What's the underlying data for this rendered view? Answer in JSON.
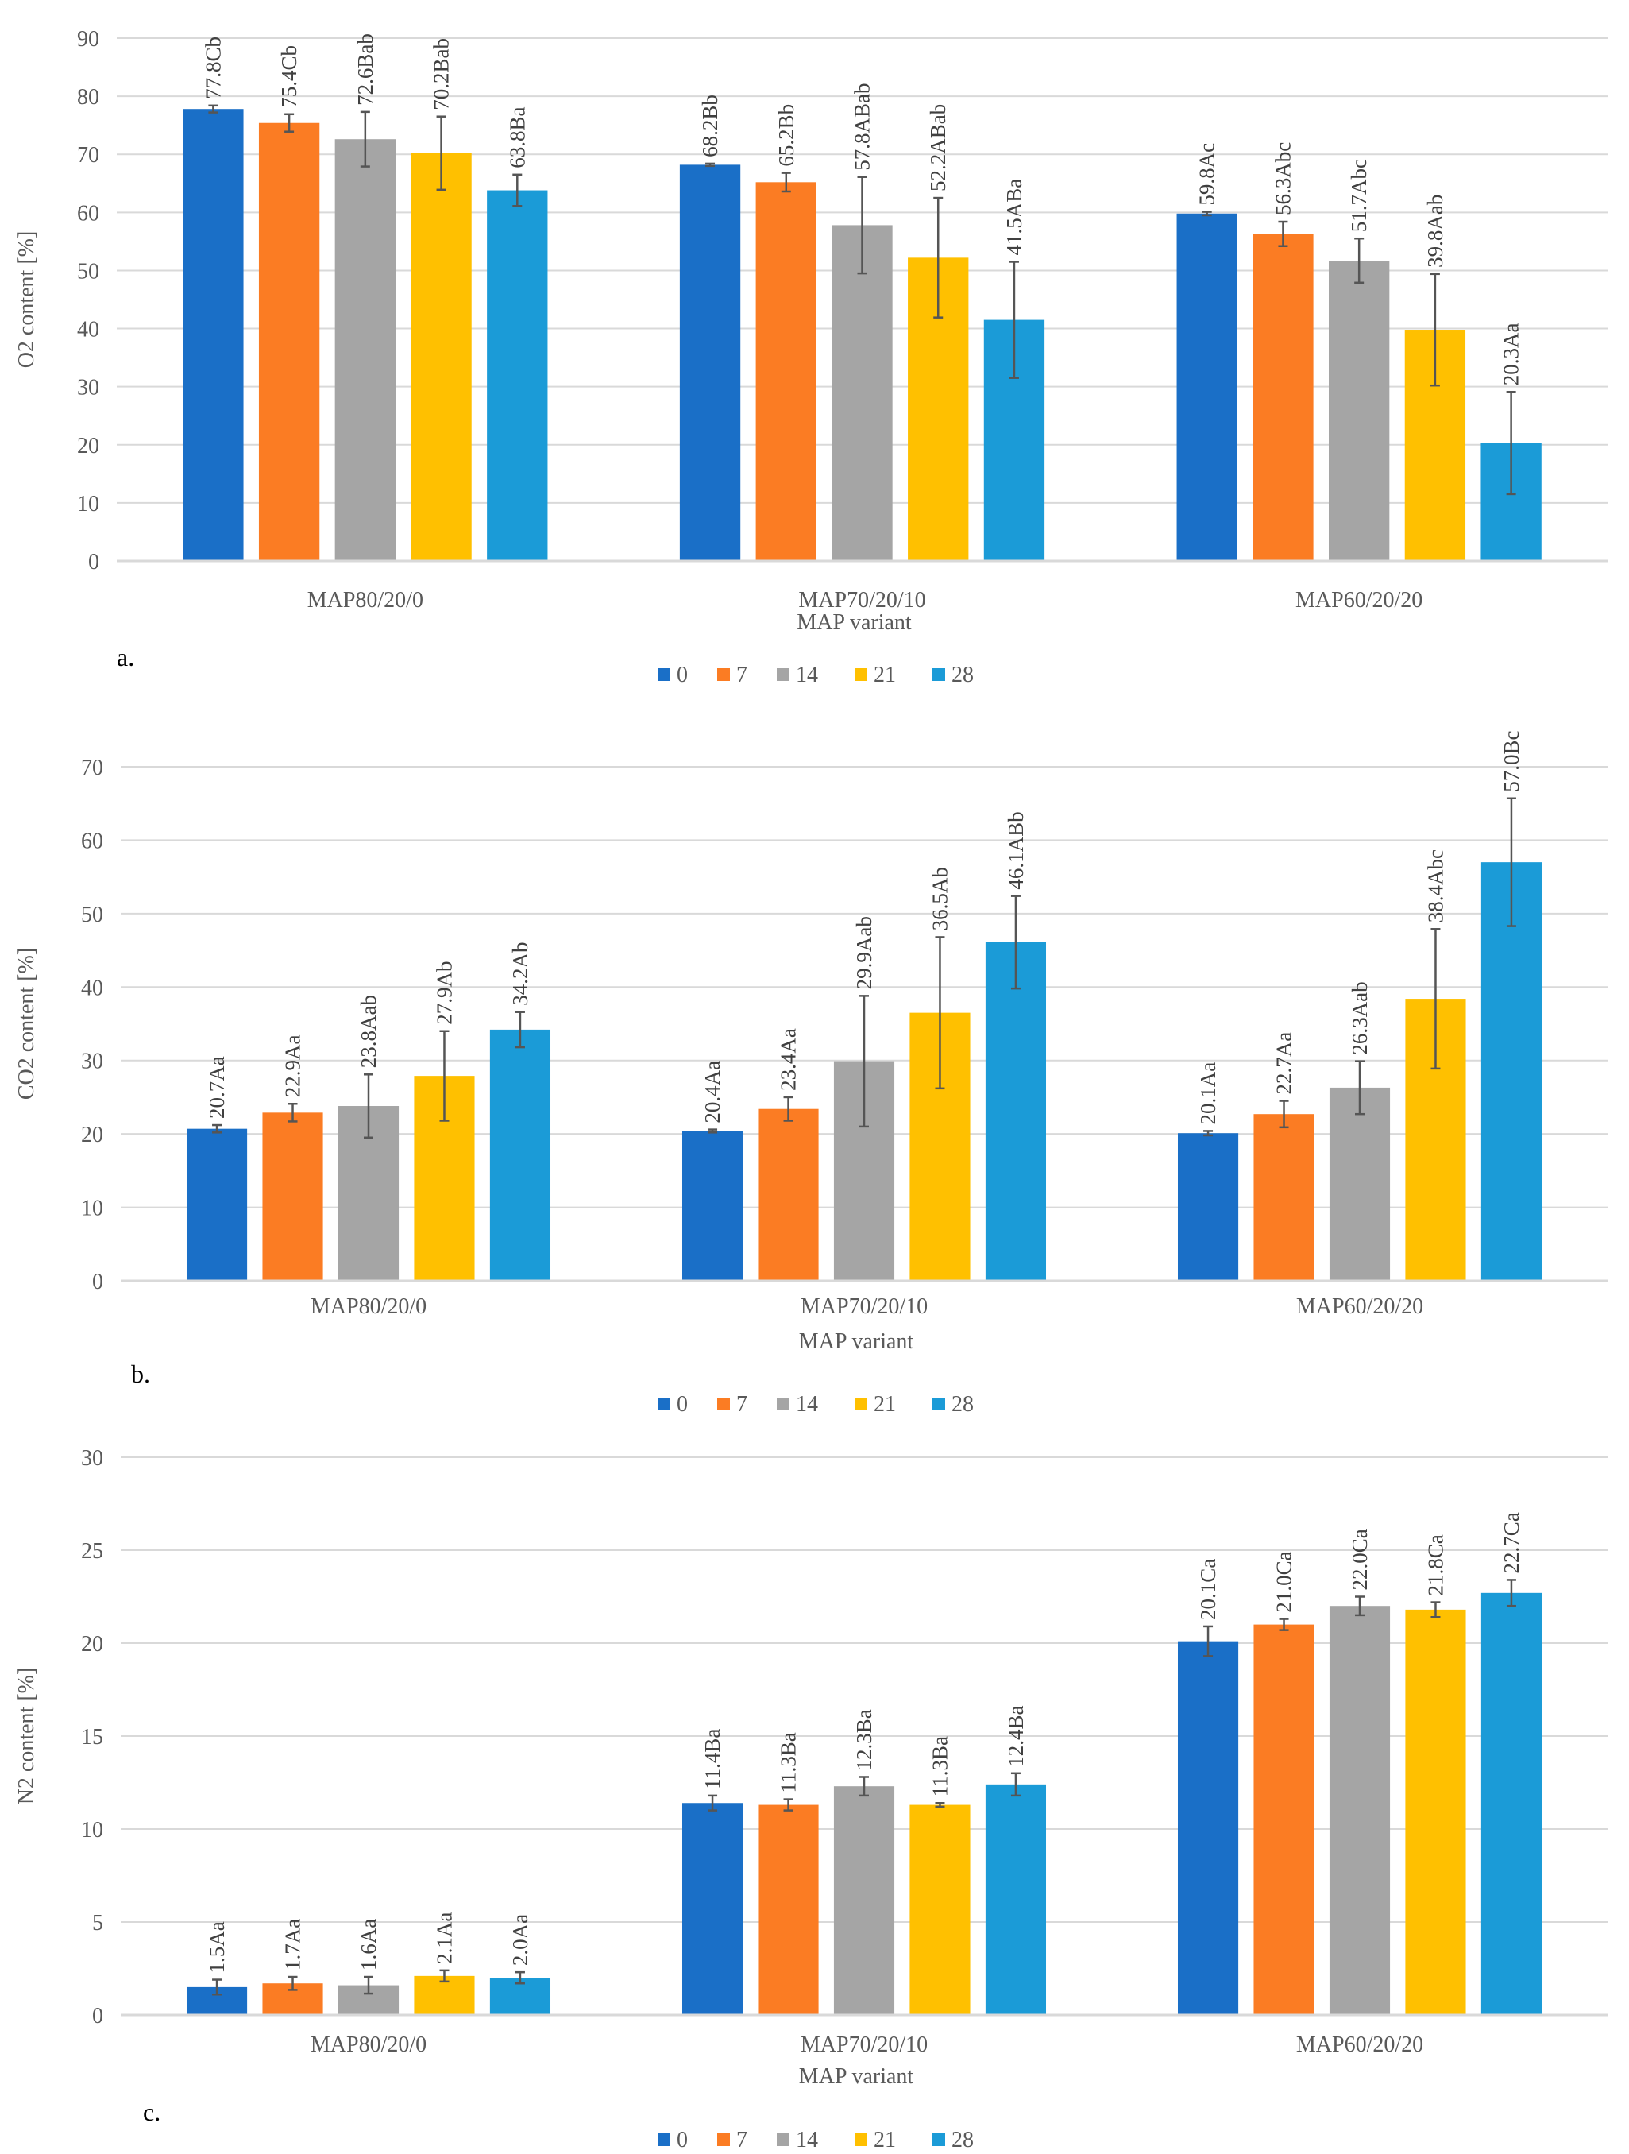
{
  "chart_data": [
    {
      "type": "bar",
      "panel_label": "a.",
      "ylabel": "O2 content [%]",
      "xlabel": "MAP variant",
      "ylim": [
        0,
        90
      ],
      "yticks": [
        0,
        10,
        20,
        30,
        40,
        50,
        60,
        70,
        80,
        90
      ],
      "grid": true,
      "legend_placement": "bottom",
      "categories": [
        "MAP80/20/0",
        "MAP70/20/10",
        "MAP60/20/20"
      ],
      "series": [
        {
          "name": "0",
          "values": [
            77.8,
            68.2,
            59.8
          ],
          "errors": [
            0.6,
            0.2,
            0.3
          ],
          "labels": [
            "77.8Cb",
            "68.2Bb",
            "59.8Ac"
          ]
        },
        {
          "name": "7",
          "values": [
            75.4,
            65.2,
            56.3
          ],
          "errors": [
            1.5,
            1.6,
            2.1
          ],
          "labels": [
            "75.4Cb",
            "65.2Bb",
            "56.3Abc"
          ]
        },
        {
          "name": "14",
          "values": [
            72.6,
            57.8,
            51.7
          ],
          "errors": [
            4.7,
            8.3,
            3.8
          ],
          "labels": [
            "72.6Bab",
            "57.8ABab",
            "51.7Abc"
          ]
        },
        {
          "name": "21",
          "values": [
            70.2,
            52.2,
            39.8
          ],
          "errors": [
            6.3,
            10.3,
            9.6
          ],
          "labels": [
            "70.2Bab",
            "52.2ABab",
            "39.8Aab"
          ]
        },
        {
          "name": "28",
          "values": [
            63.8,
            41.5,
            20.3
          ],
          "errors": [
            2.7,
            10.0,
            8.8
          ],
          "labels": [
            "63.8Ba",
            "41.5ABa",
            "20.3Aa"
          ]
        }
      ]
    },
    {
      "type": "bar",
      "panel_label": "b.",
      "ylabel": "CO2 content [%]",
      "xlabel": "MAP variant",
      "ylim": [
        0,
        70
      ],
      "yticks": [
        0,
        10,
        20,
        30,
        40,
        50,
        60,
        70
      ],
      "grid": true,
      "legend_placement": "bottom",
      "categories": [
        "MAP80/20/0",
        "MAP70/20/10",
        "MAP60/20/20"
      ],
      "series": [
        {
          "name": "0",
          "values": [
            20.7,
            20.4,
            20.1
          ],
          "errors": [
            0.5,
            0.2,
            0.3
          ],
          "labels": [
            "20.7Aa",
            "20.4Aa",
            "20.1Aa"
          ]
        },
        {
          "name": "7",
          "values": [
            22.9,
            23.4,
            22.7
          ],
          "errors": [
            1.2,
            1.6,
            1.8
          ],
          "labels": [
            "22.9Aa",
            "23.4Aa",
            "22.7Aa"
          ]
        },
        {
          "name": "14",
          "values": [
            23.8,
            29.9,
            26.3
          ],
          "errors": [
            4.3,
            8.9,
            3.6
          ],
          "labels": [
            "23.8Aab",
            "29.9Aab",
            "26.3Aab"
          ]
        },
        {
          "name": "21",
          "values": [
            27.9,
            36.5,
            38.4
          ],
          "errors": [
            6.1,
            10.3,
            9.5
          ],
          "labels": [
            "27.9Ab",
            "36.5Ab",
            "38.4Abc"
          ]
        },
        {
          "name": "28",
          "values": [
            34.2,
            46.1,
            57.0
          ],
          "errors": [
            2.4,
            6.3,
            8.7
          ],
          "labels": [
            "34.2Ab",
            "46.1ABb",
            "57.0Bc"
          ]
        }
      ]
    },
    {
      "type": "bar",
      "panel_label": "c.",
      "ylabel": "N2 content [%]",
      "xlabel": "MAP variant",
      "ylim": [
        0,
        30
      ],
      "yticks": [
        0,
        5,
        10,
        15,
        20,
        25,
        30
      ],
      "grid": true,
      "legend_placement": "bottom",
      "categories": [
        "MAP80/20/0",
        "MAP70/20/10",
        "MAP60/20/20"
      ],
      "series": [
        {
          "name": "0",
          "values": [
            1.5,
            11.4,
            20.1
          ],
          "errors": [
            0.4,
            0.4,
            0.8
          ],
          "labels": [
            "1.5Aa",
            "11.4Ba",
            "20.1Ca"
          ]
        },
        {
          "name": "7",
          "values": [
            1.7,
            11.3,
            21.0
          ],
          "errors": [
            0.35,
            0.3,
            0.3
          ],
          "labels": [
            "1.7Aa",
            "11.3Ba",
            "21.0Ca"
          ]
        },
        {
          "name": "14",
          "values": [
            1.6,
            12.3,
            22.0
          ],
          "errors": [
            0.45,
            0.5,
            0.5
          ],
          "labels": [
            "1.6Aa",
            "12.3Ba",
            "22.0Ca"
          ]
        },
        {
          "name": "21",
          "values": [
            2.1,
            11.3,
            21.8
          ],
          "errors": [
            0.3,
            0.1,
            0.4
          ],
          "labels": [
            "2.1Aa",
            "11.3Ba",
            "21.8Ca"
          ]
        },
        {
          "name": "28",
          "values": [
            2.0,
            12.4,
            22.7
          ],
          "errors": [
            0.3,
            0.6,
            0.7
          ],
          "labels": [
            "2.0Aa",
            "12.4Ba",
            "22.7Ca"
          ]
        }
      ]
    }
  ],
  "colors": {
    "0": "#1a6fc7",
    "7": "#fb7c23",
    "14": "#a5a5a5",
    "21": "#ffc000",
    "28": "#1b9bd7"
  }
}
